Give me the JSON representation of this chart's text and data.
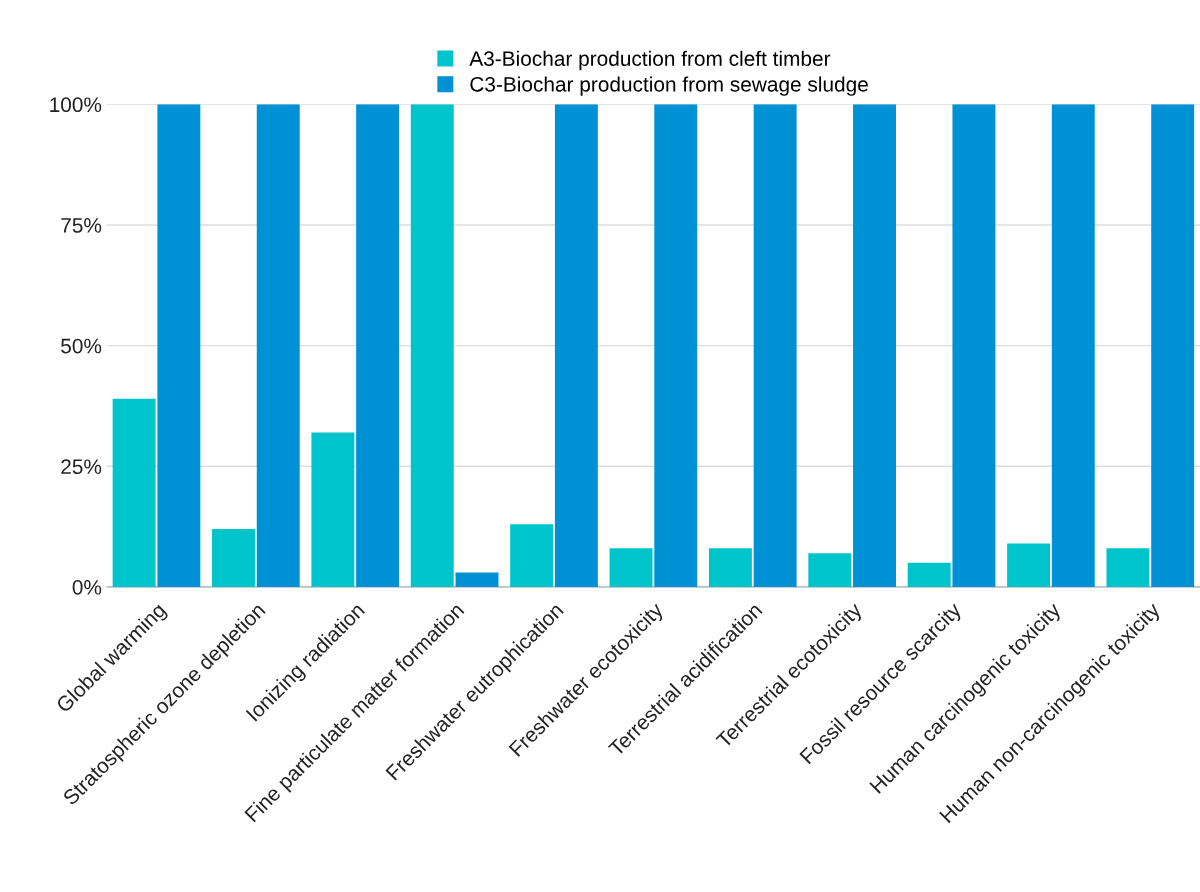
{
  "chart_data": {
    "type": "bar",
    "categories": [
      "Global warming",
      "Stratospheric ozone depletion",
      "Ionizing radiation",
      "Fine particulate matter formation",
      "Freshwater eutrophication",
      "Freshwater ecotoxicity",
      "Terrestrial acidification",
      "Terrestrial ecotoxicity",
      "Fossil resource scarcity",
      "Human carcinogenic toxicity",
      "Human non-carcinogenic toxicity"
    ],
    "series": [
      {
        "name": "A3-Biochar production from cleft timber",
        "color": "#00c4cc",
        "values": [
          39,
          12,
          32,
          100,
          13,
          8,
          8,
          7,
          5,
          9,
          8
        ]
      },
      {
        "name": "C3-Biochar production from sewage sludge",
        "color": "#0091d5",
        "values": [
          100,
          100,
          100,
          3,
          100,
          100,
          100,
          100,
          100,
          100,
          100
        ]
      }
    ],
    "ylim": [
      0,
      100
    ],
    "yticks": [
      {
        "value": 0,
        "label": "0%"
      },
      {
        "value": 25,
        "label": "25%"
      },
      {
        "value": 50,
        "label": "50%"
      },
      {
        "value": 75,
        "label": "75%"
      },
      {
        "value": 100,
        "label": "100%"
      }
    ],
    "grid": "y",
    "legend": "top"
  }
}
